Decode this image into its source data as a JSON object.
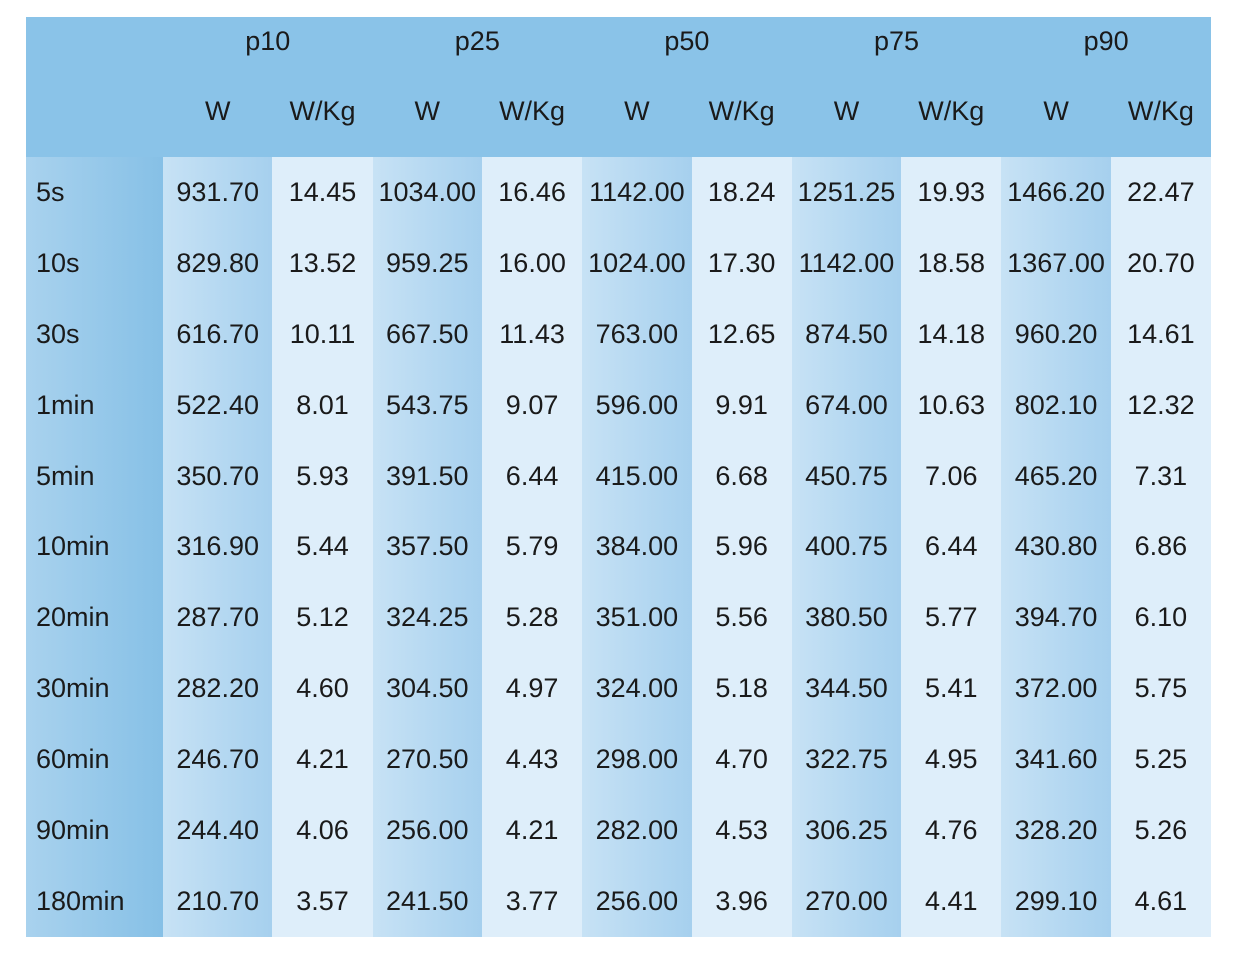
{
  "chart_data": {
    "type": "table",
    "percentiles": [
      "p10",
      "p25",
      "p50",
      "p75",
      "p90"
    ],
    "units": [
      "W",
      "W/Kg"
    ],
    "rows": [
      {
        "label": "5s",
        "values": [
          "931.70",
          "14.45",
          "1034.00",
          "16.46",
          "1142.00",
          "18.24",
          "1251.25",
          "19.93",
          "1466.20",
          "22.47"
        ]
      },
      {
        "label": "10s",
        "values": [
          "829.80",
          "13.52",
          "959.25",
          "16.00",
          "1024.00",
          "17.30",
          "1142.00",
          "18.58",
          "1367.00",
          "20.70"
        ]
      },
      {
        "label": "30s",
        "values": [
          "616.70",
          "10.11",
          "667.50",
          "11.43",
          "763.00",
          "12.65",
          "874.50",
          "14.18",
          "960.20",
          "14.61"
        ]
      },
      {
        "label": "1min",
        "values": [
          "522.40",
          "8.01",
          "543.75",
          "9.07",
          "596.00",
          "9.91",
          "674.00",
          "10.63",
          "802.10",
          "12.32"
        ]
      },
      {
        "label": "5min",
        "values": [
          "350.70",
          "5.93",
          "391.50",
          "6.44",
          "415.00",
          "6.68",
          "450.75",
          "7.06",
          "465.20",
          "7.31"
        ]
      },
      {
        "label": "10min",
        "values": [
          "316.90",
          "5.44",
          "357.50",
          "5.79",
          "384.00",
          "5.96",
          "400.75",
          "6.44",
          "430.80",
          "6.86"
        ]
      },
      {
        "label": "20min",
        "values": [
          "287.70",
          "5.12",
          "324.25",
          "5.28",
          "351.00",
          "5.56",
          "380.50",
          "5.77",
          "394.70",
          "6.10"
        ]
      },
      {
        "label": "30min",
        "values": [
          "282.20",
          "4.60",
          "304.50",
          "4.97",
          "324.00",
          "5.18",
          "344.50",
          "5.41",
          "372.00",
          "5.75"
        ]
      },
      {
        "label": "60min",
        "values": [
          "246.70",
          "4.21",
          "270.50",
          "4.43",
          "298.00",
          "4.70",
          "322.75",
          "4.95",
          "341.60",
          "5.25"
        ]
      },
      {
        "label": "90min",
        "values": [
          "244.40",
          "4.06",
          "256.00",
          "4.21",
          "282.00",
          "4.53",
          "306.25",
          "4.76",
          "328.20",
          "5.26"
        ]
      },
      {
        "label": "180min",
        "values": [
          "210.70",
          "3.57",
          "241.50",
          "3.77",
          "256.00",
          "3.96",
          "270.00",
          "4.41",
          "299.10",
          "4.61"
        ]
      }
    ]
  },
  "colors": {
    "header": "#8ac3e8",
    "label_column": "#a9d2ee",
    "watts_column": "#bcdcf2",
    "wkg_column": "#deeefa"
  }
}
